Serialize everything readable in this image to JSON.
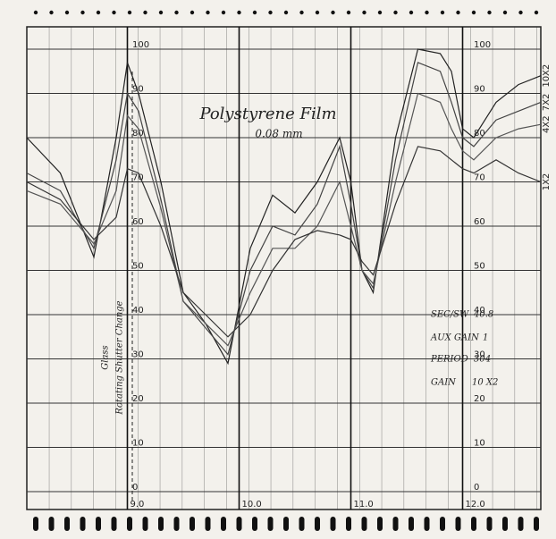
{
  "chart_data": {
    "type": "line",
    "title": "Polystyrene Film",
    "subtitle": "0.08 mm",
    "x": [
      8.1,
      8.4,
      8.7,
      8.9,
      9.0,
      9.1,
      9.3,
      9.5,
      9.7,
      9.9,
      10.1,
      10.3,
      10.5,
      10.7,
      10.9,
      11.0,
      11.1,
      11.2,
      11.4,
      11.6,
      11.8,
      11.9,
      12.0,
      12.1,
      12.3,
      12.5,
      12.7
    ],
    "series": [
      {
        "name": "10X2",
        "color": "#222222",
        "values": [
          80,
          72,
          53,
          80,
          97,
          90,
          70,
          45,
          38,
          29,
          55,
          67,
          63,
          70,
          80,
          70,
          50,
          45,
          80,
          100,
          99,
          95,
          82,
          80,
          88,
          92,
          94
        ]
      },
      {
        "name": "7X2",
        "color": "#444444",
        "values": [
          72,
          68,
          55,
          75,
          90,
          86,
          66,
          43,
          37,
          31,
          50,
          60,
          58,
          65,
          78,
          65,
          50,
          46,
          75,
          97,
          95,
          88,
          80,
          78,
          84,
          86,
          88
        ]
      },
      {
        "name": "4X2",
        "color": "#555555",
        "values": [
          68,
          65,
          56,
          68,
          85,
          82,
          64,
          43,
          38,
          33,
          45,
          55,
          55,
          60,
          70,
          60,
          50,
          47,
          70,
          90,
          88,
          82,
          77,
          75,
          80,
          82,
          83
        ]
      },
      {
        "name": "1X2",
        "color": "#333333",
        "values": [
          70,
          66,
          57,
          62,
          73,
          72,
          60,
          45,
          40,
          35,
          40,
          50,
          57,
          59,
          58,
          57,
          52,
          49,
          65,
          78,
          77,
          75,
          73,
          72,
          75,
          72,
          70
        ]
      }
    ],
    "xlim": [
      8.1,
      12.7
    ],
    "xticks": [
      {
        "value": 9,
        "label": "9.0"
      },
      {
        "value": 10,
        "label": "10.0"
      },
      {
        "value": 11,
        "label": "11.0"
      },
      {
        "value": 12,
        "label": "12.0"
      }
    ],
    "ylim": [
      0,
      100
    ],
    "yticks": [
      0,
      10,
      20,
      30,
      40,
      50,
      60,
      70,
      80,
      90,
      100
    ],
    "grid": true,
    "annotations": [
      "Glass",
      "Rotating Shutter Change",
      "SEC/SW",
      "40.8",
      "AUX GAIN",
      "1",
      "PERIOD",
      "304",
      "GAIN",
      "10 X2"
    ]
  }
}
